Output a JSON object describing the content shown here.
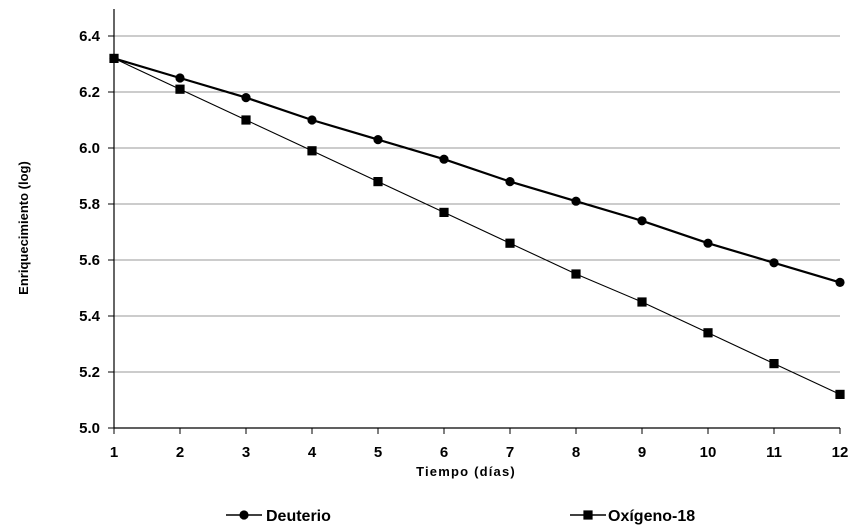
{
  "chart_data": {
    "type": "line",
    "title": "",
    "xlabel": "Tiempo (días)",
    "ylabel": "Enriquecimiento (log)",
    "x": [
      1,
      2,
      3,
      4,
      5,
      6,
      7,
      8,
      9,
      10,
      11,
      12
    ],
    "xlim": [
      1,
      12
    ],
    "ylim": [
      5.0,
      6.4
    ],
    "yticks": [
      "5.0",
      "5.2",
      "5.4",
      "5.6",
      "5.8",
      "6.0",
      "6.2",
      "6.4"
    ],
    "xticks": [
      "1",
      "2",
      "3",
      "4",
      "5",
      "6",
      "7",
      "8",
      "9",
      "10",
      "11",
      "12"
    ],
    "grid": "horizontal",
    "legend_position": "bottom",
    "series": [
      {
        "name": "Deuterio",
        "marker": "circle",
        "color": "#000000",
        "values": [
          6.32,
          6.25,
          6.18,
          6.1,
          6.03,
          5.96,
          5.88,
          5.81,
          5.74,
          5.66,
          5.59,
          5.52
        ]
      },
      {
        "name": "Oxígeno-18",
        "marker": "square",
        "color": "#000000",
        "values": [
          6.32,
          6.21,
          6.1,
          5.99,
          5.88,
          5.77,
          5.66,
          5.55,
          5.45,
          5.34,
          5.23,
          5.12
        ]
      }
    ]
  }
}
